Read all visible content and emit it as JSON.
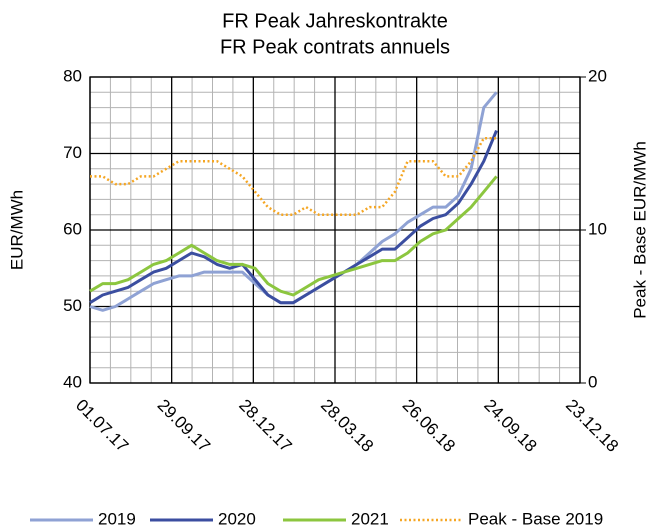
{
  "chart_data": {
    "type": "line",
    "title": [
      "FR Peak Jahreskontrakte",
      "FR Peak contrats annuels"
    ],
    "y_label": "EUR/MWh",
    "y2_label": "Peak - Base EUR/MWh",
    "x": [
      "2017-07-01",
      "2017-07-15",
      "2017-07-29",
      "2017-08-12",
      "2017-08-26",
      "2017-09-09",
      "2017-09-23",
      "2017-10-07",
      "2017-10-21",
      "2017-11-04",
      "2017-11-18",
      "2017-12-02",
      "2017-12-16",
      "2017-12-30",
      "2018-01-13",
      "2018-01-27",
      "2018-02-10",
      "2018-02-24",
      "2018-03-10",
      "2018-03-24",
      "2018-04-07",
      "2018-04-21",
      "2018-05-05",
      "2018-05-19",
      "2018-06-02",
      "2018-06-16",
      "2018-06-30",
      "2018-07-14",
      "2018-07-28",
      "2018-08-11",
      "2018-08-25",
      "2018-09-08",
      "2018-09-22"
    ],
    "series": [
      {
        "name": "2019",
        "color": "#8fa2d4",
        "values": [
          50,
          49.5,
          50,
          51,
          52,
          53,
          53.5,
          54,
          54,
          54.5,
          54.5,
          54.5,
          54.5,
          53,
          51.5,
          50.5,
          50.5,
          51.5,
          52.5,
          53.5,
          54.5,
          55.5,
          57,
          58.5,
          59.5,
          61,
          62,
          63,
          63,
          64.5,
          68,
          76,
          78
        ]
      },
      {
        "name": "2020",
        "color": "#3b4ea0",
        "values": [
          50.5,
          51.5,
          52,
          52.5,
          53.5,
          54.5,
          55,
          56,
          57,
          56.5,
          55.5,
          55,
          55.5,
          53.5,
          51.5,
          50.5,
          50.5,
          51.5,
          52.5,
          53.5,
          54.5,
          55.5,
          56.5,
          57.5,
          57.5,
          59,
          60.5,
          61.5,
          62,
          63.5,
          66,
          69,
          73
        ]
      },
      {
        "name": "2021",
        "color": "#8cc63f",
        "values": [
          52,
          53,
          53,
          53.5,
          54.5,
          55.5,
          56,
          57,
          58,
          57,
          56,
          55.5,
          55.5,
          55,
          53,
          52,
          51.5,
          52.5,
          53.5,
          54,
          54.5,
          55,
          55.5,
          56,
          56,
          57,
          58.5,
          59.5,
          60,
          61.5,
          63,
          65,
          67
        ]
      },
      {
        "name": "Peak - Base 2019",
        "color": "#f5a623",
        "dotted": true,
        "axis": "y2",
        "values": [
          13.5,
          13.5,
          13,
          13,
          13.5,
          13.5,
          14,
          14.5,
          14.5,
          14.5,
          14.5,
          14,
          13.5,
          12.5,
          11.5,
          11,
          11,
          11.5,
          11,
          11,
          11,
          11,
          11.5,
          11.5,
          12.5,
          14.5,
          14.5,
          14.5,
          13.5,
          13.5,
          14.5,
          16,
          16
        ]
      }
    ],
    "xlim": [
      "2017-07-01",
      "2018-12-23"
    ],
    "xticks": [
      {
        "value": "2017-07-01",
        "label": "01.07.17"
      },
      {
        "value": "2017-09-29",
        "label": "29.09.17"
      },
      {
        "value": "2017-12-28",
        "label": "28.12.17"
      },
      {
        "value": "2018-03-28",
        "label": "28.03.18"
      },
      {
        "value": "2018-06-26",
        "label": "26.06.18"
      },
      {
        "value": "2018-09-24",
        "label": "24.09.18"
      },
      {
        "value": "2018-12-23",
        "label": "23.12.18"
      }
    ],
    "ylim": [
      40,
      80
    ],
    "yticks": [
      40,
      50,
      60,
      70,
      80
    ],
    "y2lim": [
      0,
      20
    ],
    "y2ticks": [
      0,
      10,
      20
    ],
    "grid": true,
    "xminor": 4,
    "yminor": 5,
    "legend": "bottom"
  }
}
